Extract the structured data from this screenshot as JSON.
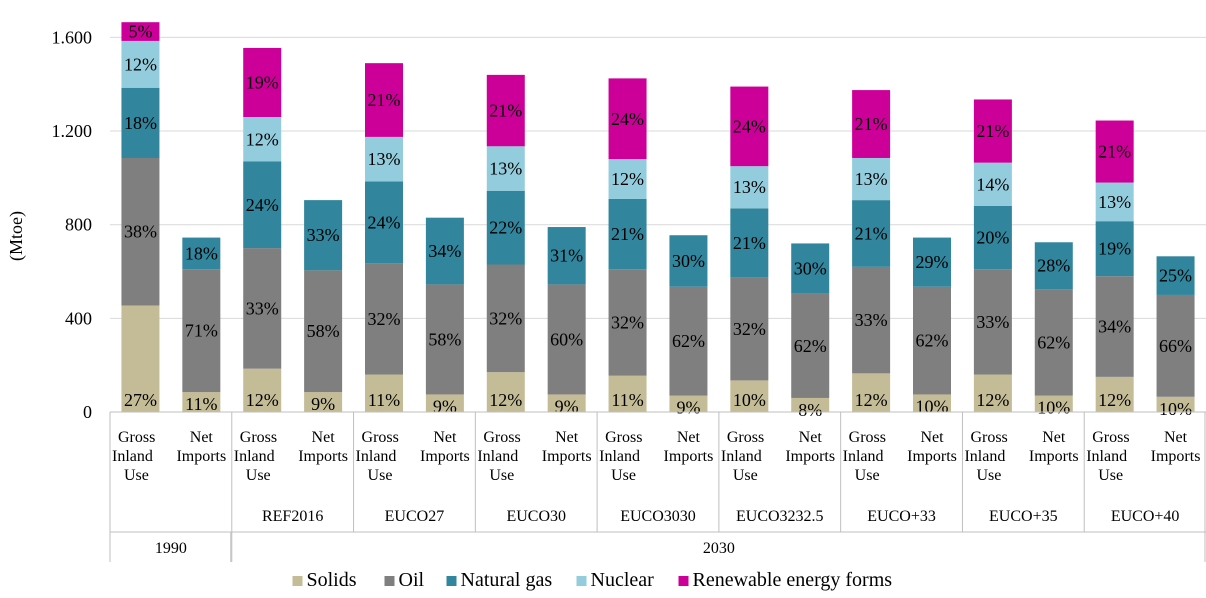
{
  "chart_data": {
    "type": "bar",
    "stacked": true,
    "title": "",
    "xlabel": "",
    "ylabel": "(Mtoe)",
    "ylim": [
      0,
      1700
    ],
    "yticks": [
      0,
      400,
      800,
      1200,
      1600
    ],
    "ytick_labels": [
      "0",
      "400",
      "800",
      "1.200",
      "1.600"
    ],
    "grid": true,
    "legend_position": "bottom",
    "series": [
      {
        "name": "Solids",
        "color": "#c4bc96"
      },
      {
        "name": "Oil",
        "color": "#7f7f7f"
      },
      {
        "name": "Natural gas",
        "color": "#31859c"
      },
      {
        "name": "Nuclear",
        "color": "#93cddd"
      },
      {
        "name": "Renewable energy forms",
        "color": "#cc0099"
      }
    ],
    "groups": [
      {
        "scenario": "",
        "year": "1990",
        "bars": [
          {
            "label": [
              "Gross",
              "Inland",
              "Use"
            ],
            "values": [
              455,
              630,
              300,
              200,
              80
            ],
            "labels": [
              "27%",
              "38%",
              "18%",
              "12%",
              "5%"
            ]
          },
          {
            "label": [
              "Net",
              "Imports"
            ],
            "values": [
              85,
              525,
              135,
              0,
              0
            ],
            "labels": [
              "11%",
              "71%",
              "18%",
              "",
              ""
            ]
          }
        ]
      },
      {
        "scenario": "REF2016",
        "year": "2030",
        "bars": [
          {
            "label": [
              "Gross",
              "Inland",
              "Use"
            ],
            "values": [
              185,
              515,
              370,
              190,
              295
            ],
            "labels": [
              "12%",
              "33%",
              "24%",
              "12%",
              "19%"
            ]
          },
          {
            "label": [
              "Net",
              "Imports"
            ],
            "values": [
              85,
              520,
              300,
              0,
              0
            ],
            "labels": [
              "9%",
              "58%",
              "33%",
              "",
              ""
            ]
          }
        ]
      },
      {
        "scenario": "EUCO27",
        "year": "2030",
        "bars": [
          {
            "label": [
              "Gross",
              "Inland",
              "Use"
            ],
            "values": [
              160,
              475,
              350,
              190,
              315
            ],
            "labels": [
              "11%",
              "32%",
              "24%",
              "13%",
              "21%"
            ]
          },
          {
            "label": [
              "Net",
              "Imports"
            ],
            "values": [
              75,
              470,
              285,
              0,
              0
            ],
            "labels": [
              "9%",
              "58%",
              "34%",
              "",
              ""
            ]
          }
        ]
      },
      {
        "scenario": "EUCO30",
        "year": "2030",
        "bars": [
          {
            "label": [
              "Gross",
              "Inland",
              "Use"
            ],
            "values": [
              170,
              460,
              315,
              190,
              305
            ],
            "labels": [
              "12%",
              "32%",
              "22%",
              "13%",
              "21%"
            ]
          },
          {
            "label": [
              "Net",
              "Imports"
            ],
            "values": [
              75,
              470,
              245,
              0,
              0
            ],
            "labels": [
              "9%",
              "60%",
              "31%",
              "",
              ""
            ]
          }
        ]
      },
      {
        "scenario": "EUCO3030",
        "year": "2030",
        "bars": [
          {
            "label": [
              "Gross",
              "Inland",
              "Use"
            ],
            "values": [
              155,
              455,
              300,
              170,
              345
            ],
            "labels": [
              "11%",
              "32%",
              "21%",
              "12%",
              "24%"
            ]
          },
          {
            "label": [
              "Net",
              "Imports"
            ],
            "values": [
              70,
              465,
              220,
              0,
              0
            ],
            "labels": [
              "9%",
              "62%",
              "30%",
              "",
              ""
            ]
          }
        ]
      },
      {
        "scenario": "EUCO3232.5",
        "year": "2030",
        "bars": [
          {
            "label": [
              "Gross",
              "Inland",
              "Use"
            ],
            "values": [
              135,
              440,
              295,
              180,
              340
            ],
            "labels": [
              "10%",
              "32%",
              "21%",
              "13%",
              "24%"
            ]
          },
          {
            "label": [
              "Net",
              "Imports"
            ],
            "values": [
              60,
              445,
              215,
              0,
              0
            ],
            "labels": [
              "8%",
              "62%",
              "30%",
              "",
              ""
            ]
          }
        ]
      },
      {
        "scenario": "EUCO+33",
        "year": "2030",
        "bars": [
          {
            "label": [
              "Gross",
              "Inland",
              "Use"
            ],
            "values": [
              165,
              455,
              285,
              180,
              290
            ],
            "labels": [
              "12%",
              "33%",
              "21%",
              "13%",
              "21%"
            ]
          },
          {
            "label": [
              "Net",
              "Imports"
            ],
            "values": [
              75,
              460,
              210,
              0,
              0
            ],
            "labels": [
              "10%",
              "62%",
              "29%",
              "",
              ""
            ]
          }
        ]
      },
      {
        "scenario": "EUCO+35",
        "year": "2030",
        "bars": [
          {
            "label": [
              "Gross",
              "Inland",
              "Use"
            ],
            "values": [
              160,
              450,
              270,
              185,
              270
            ],
            "labels": [
              "12%",
              "33%",
              "20%",
              "14%",
              "21%"
            ]
          },
          {
            "label": [
              "Net",
              "Imports"
            ],
            "values": [
              70,
              455,
              200,
              0,
              0
            ],
            "labels": [
              "10%",
              "62%",
              "28%",
              "",
              ""
            ]
          }
        ]
      },
      {
        "scenario": "EUCO+40",
        "year": "2030",
        "bars": [
          {
            "label": [
              "Gross",
              "Inland",
              "Use"
            ],
            "values": [
              150,
              430,
              235,
              165,
              265
            ],
            "labels": [
              "12%",
              "34%",
              "19%",
              "13%",
              "21%"
            ]
          },
          {
            "label": [
              "Net",
              "Imports"
            ],
            "values": [
              65,
              435,
              165,
              0,
              0
            ],
            "labels": [
              "10%",
              "66%",
              "25%",
              "",
              ""
            ]
          }
        ]
      }
    ],
    "years": [
      {
        "label": "1990",
        "groups": [
          0
        ]
      },
      {
        "label": "2030",
        "groups": [
          1,
          2,
          3,
          4,
          5,
          6,
          7,
          8
        ]
      }
    ]
  }
}
